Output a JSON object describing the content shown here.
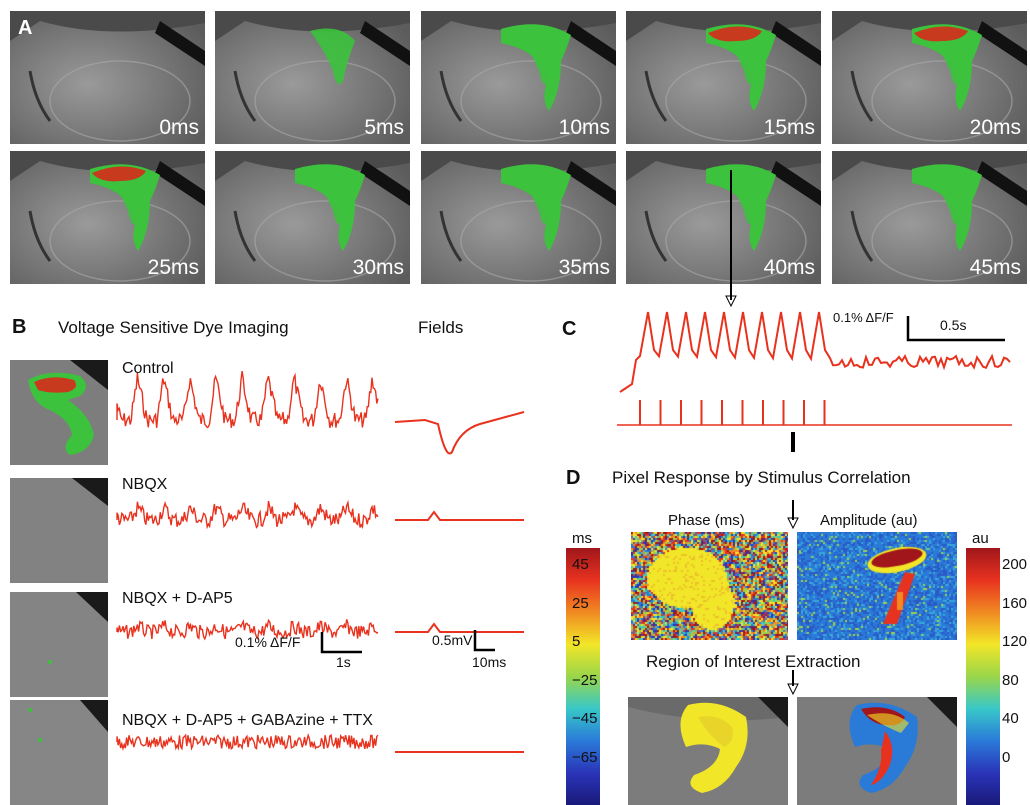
{
  "panelA": {
    "letter": "A",
    "frames": [
      "0ms",
      "5ms",
      "10ms",
      "15ms",
      "20ms",
      "25ms",
      "30ms",
      "35ms",
      "40ms",
      "45ms"
    ],
    "activation": [
      0,
      1,
      2,
      3,
      3,
      3,
      2,
      2,
      2,
      2
    ]
  },
  "panelB": {
    "letter": "B",
    "title": "Voltage Sensitive Dye Imaging",
    "fields_title": "Fields",
    "conditions": [
      "Control",
      "NBQX",
      "NBQX + D-AP5",
      "NBQX + D-AP5 + GABAzine + TTX"
    ],
    "scale_vsd_label": "0.1% ΔF/F",
    "scale_vsd_time": "1s",
    "scale_field_label": "0.5mV",
    "scale_field_time": "10ms"
  },
  "panelC": {
    "letter": "C",
    "scale_label": "0.1% ΔF/F",
    "scale_time": "0.5s",
    "stimulus_count": 10
  },
  "panelD": {
    "letter": "D",
    "title": "Pixel Response by Stimulus Correlation",
    "phase_title": "Phase (ms)",
    "amplitude_title": "Amplitude (au)",
    "roi_title": "Region of Interest Extraction",
    "phase_unit": "ms",
    "amp_unit": "au",
    "phase_ticks": [
      "45",
      "25",
      "5",
      "−25",
      "−45",
      "−65"
    ],
    "amp_ticks": [
      "200",
      "160",
      "120",
      "80",
      "40",
      "0"
    ]
  },
  "colors": {
    "trace": "#e8321e",
    "green": "#3cc23c",
    "slice": "#8c8c8c"
  }
}
